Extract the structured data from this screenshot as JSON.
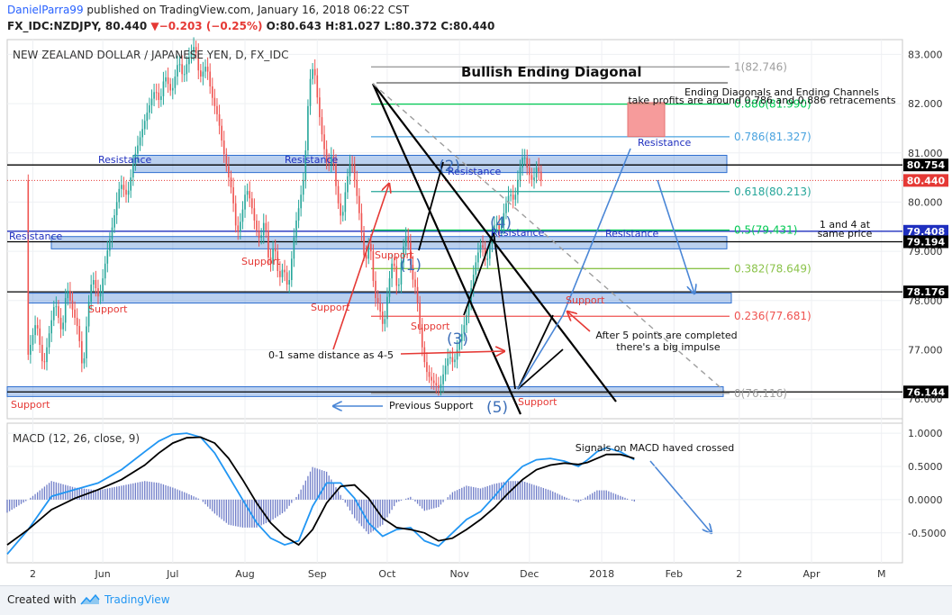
{
  "header": {
    "author": "DanielParra99",
    "published_text": " published on TradingView.com, January 16, 2018 06:22 CST",
    "symbol": "FX_IDC:NZDJPY,",
    "last": "80.440",
    "change": "▼−0.203 (−0.25%)",
    "ohlc": "O:80.643 H:81.027 L:80.372 C:80.440"
  },
  "footer": {
    "created_with": "Created with",
    "brand": "TradingView",
    "logo_icon": "tradingview-logo-icon"
  },
  "colors": {
    "bull": "#26a69a",
    "bear": "#ef5350",
    "zone": "#5b8fd9",
    "arrow_blue": "#4a86d6",
    "resistance_text": "#1f2fbf",
    "support_text": "#e53935",
    "fib_grey": "#9e9e9e",
    "fib_green": "#00c853",
    "fib_blue": "#4aa3df",
    "fib_teal": "#26a69a",
    "fib_lime": "#8bc34a",
    "fib_red": "#ef5350",
    "macd": "#2196f3",
    "signal": "#000000"
  },
  "chart_data": [
    {
      "type": "candlestick",
      "instrument": "NEW ZEALAND DOLLAR / JAPANESE YEN, D, FX_IDC",
      "title": "Bullish Ending Diagonal",
      "ylim": [
        75.6,
        83.3
      ],
      "y_ticks": [
        "83.000",
        "82.000",
        "81.000",
        "80.000",
        "79.000",
        "78.000",
        "77.000",
        "76.000"
      ],
      "x_ticks": [
        {
          "label": "2",
          "day": 2
        },
        {
          "label": "Jun",
          "day": 32
        },
        {
          "label": "Jul",
          "day": 62
        },
        {
          "label": "Aug",
          "day": 93
        },
        {
          "label": "Sep",
          "day": 124
        },
        {
          "label": "Oct",
          "day": 154
        },
        {
          "label": "Nov",
          "day": 185
        },
        {
          "label": "Dec",
          "day": 215
        },
        {
          "label": "2018",
          "day": 246
        },
        {
          "label": "Feb",
          "day": 277
        },
        {
          "label": "2",
          "day": 305
        },
        {
          "label": "Apr",
          "day": 336
        },
        {
          "label": "M",
          "day": 366
        }
      ],
      "x_range_days": [
        -9,
        375
      ],
      "price_path": [
        [
          0,
          76.8
        ],
        [
          4,
          77.6
        ],
        [
          7,
          76.6
        ],
        [
          9,
          77.2
        ],
        [
          12,
          78.0
        ],
        [
          15,
          77.3
        ],
        [
          17,
          78.3
        ],
        [
          19,
          77.9
        ],
        [
          22,
          77.4
        ],
        [
          24,
          76.5
        ],
        [
          26,
          77.8
        ],
        [
          28,
          78.5
        ],
        [
          31,
          78.0
        ],
        [
          34,
          78.9
        ],
        [
          37,
          79.6
        ],
        [
          40,
          80.4
        ],
        [
          43,
          80.1
        ],
        [
          46,
          80.9
        ],
        [
          49,
          81.4
        ],
        [
          52,
          81.9
        ],
        [
          55,
          82.3
        ],
        [
          57,
          82.0
        ],
        [
          59,
          82.6
        ],
        [
          62,
          82.2
        ],
        [
          65,
          82.9
        ],
        [
          67,
          82.5
        ],
        [
          69,
          82.9
        ],
        [
          72,
          83.2
        ],
        [
          74,
          82.5
        ],
        [
          77,
          82.8
        ],
        [
          79,
          82.2
        ],
        [
          82,
          81.7
        ],
        [
          84,
          81.1
        ],
        [
          86,
          80.6
        ],
        [
          88,
          80.2
        ],
        [
          90,
          79.3
        ],
        [
          92,
          79.7
        ],
        [
          94,
          80.3
        ],
        [
          96,
          80.0
        ],
        [
          98,
          79.5
        ],
        [
          100,
          79.2
        ],
        [
          102,
          79.7
        ],
        [
          104,
          78.6
        ],
        [
          106,
          79.2
        ],
        [
          108,
          78.4
        ],
        [
          110,
          78.7
        ],
        [
          112,
          78.2
        ],
        [
          115,
          79.5
        ],
        [
          117,
          80.0
        ],
        [
          119,
          80.6
        ],
        [
          121,
          82.4
        ],
        [
          123,
          82.8
        ],
        [
          125,
          81.9
        ],
        [
          127,
          81.2
        ],
        [
          129,
          80.7
        ],
        [
          131,
          81.0
        ],
        [
          133,
          80.1
        ],
        [
          135,
          79.6
        ],
        [
          137,
          80.4
        ],
        [
          139,
          80.9
        ],
        [
          141,
          80.3
        ],
        [
          143,
          79.6
        ],
        [
          145,
          78.7
        ],
        [
          147,
          79.3
        ],
        [
          149,
          78.1
        ],
        [
          151,
          77.9
        ],
        [
          153,
          77.4
        ],
        [
          155,
          78.3
        ],
        [
          157,
          78.9
        ],
        [
          159,
          78.1
        ],
        [
          161,
          79.0
        ],
        [
          163,
          79.4
        ],
        [
          165,
          78.5
        ],
        [
          167,
          78.2
        ],
        [
          169,
          77.2
        ],
        [
          171,
          76.6
        ],
        [
          173,
          76.4
        ],
        [
          175,
          76.3
        ],
        [
          177,
          76.2
        ],
        [
          179,
          76.6
        ],
        [
          181,
          76.9
        ],
        [
          183,
          76.7
        ],
        [
          185,
          77.1
        ],
        [
          187,
          77.4
        ],
        [
          189,
          77.8
        ],
        [
          191,
          78.4
        ],
        [
          193,
          78.9
        ],
        [
          195,
          79.2
        ],
        [
          197,
          78.7
        ],
        [
          199,
          79.3
        ],
        [
          201,
          79.6
        ],
        [
          203,
          79.4
        ],
        [
          205,
          79.9
        ],
        [
          207,
          80.2
        ],
        [
          209,
          80.0
        ],
        [
          211,
          80.6
        ],
        [
          213,
          81.0
        ],
        [
          215,
          80.6
        ],
        [
          217,
          80.4
        ],
        [
          219,
          80.8
        ],
        [
          220,
          80.44
        ]
      ],
      "horizontal_levels": [
        {
          "price": 80.754,
          "label": "80.754",
          "box": "black"
        },
        {
          "price": 80.44,
          "label": "80.440",
          "box": "red",
          "style": "dotted"
        },
        {
          "price": 79.408,
          "label": "79.408",
          "box": "blue"
        },
        {
          "price": 79.194,
          "label": "79.194",
          "box": "black"
        },
        {
          "price": 78.176,
          "label": "78.176",
          "box": "black"
        },
        {
          "price": 76.144,
          "label": "76.144",
          "box": "black"
        }
      ],
      "fibonacci": [
        {
          "label": "1(82.746)",
          "price": 82.746,
          "color": "#9e9e9e"
        },
        {
          "label": "0.886(81.990)",
          "price": 81.99,
          "color": "#00c853"
        },
        {
          "label": "0.786(81.327)",
          "price": 81.327,
          "color": "#4aa3df"
        },
        {
          "label": "0.618(80.213)",
          "price": 80.213,
          "color": "#26a69a"
        },
        {
          "label": "0.5(79.431)",
          "price": 79.431,
          "color": "#00c853"
        },
        {
          "label": "0.382(78.649)",
          "price": 78.649,
          "color": "#8bc34a"
        },
        {
          "label": "0.236(77.681)",
          "price": 77.681,
          "color": "#ef5350"
        },
        {
          "label": "0(76.116)",
          "price": 76.116,
          "color": "#9e9e9e"
        }
      ],
      "zones": [
        {
          "price_top": 80.95,
          "price_bottom": 80.6
        },
        {
          "price_top": 79.3,
          "price_bottom": 79.05
        },
        {
          "price_top": 78.15,
          "price_bottom": 77.95
        },
        {
          "price_top": 76.25,
          "price_bottom": 76.05
        }
      ],
      "wave_labels": [
        "(1)",
        "(2)",
        "(3)",
        "(4)",
        "(5)"
      ],
      "annotations": {
        "ending_note_1": "Ending Diagonals and Ending Channels",
        "ending_note_2": "take profits are around 0.786 and 0.886 retracements",
        "same_price_1": "1 and 4 at",
        "same_price_2": "same price",
        "distance_note": "0-1 same distance as 4-5",
        "impulse_1": "After 5 points are completed",
        "impulse_2": "there's a big impulse",
        "previous_support": "Previous Support",
        "resistance": "Resistance",
        "support": "Support"
      }
    },
    {
      "type": "line",
      "title": "MACD (12, 26, close, 9)",
      "ylim": [
        -0.95,
        1.15
      ],
      "y_ticks": [
        "1.0000",
        "0.5000",
        "0.0000",
        "-0.5000"
      ],
      "series": [
        {
          "name": "MACD",
          "points": [
            [
              -9,
              -0.82
            ],
            [
              0,
              -0.45
            ],
            [
              10,
              0.05
            ],
            [
              20,
              0.15
            ],
            [
              30,
              0.25
            ],
            [
              40,
              0.45
            ],
            [
              50,
              0.72
            ],
            [
              56,
              0.88
            ],
            [
              62,
              0.98
            ],
            [
              68,
              1.0
            ],
            [
              74,
              0.94
            ],
            [
              80,
              0.7
            ],
            [
              86,
              0.35
            ],
            [
              92,
              0.0
            ],
            [
              98,
              -0.35
            ],
            [
              104,
              -0.58
            ],
            [
              110,
              -0.68
            ],
            [
              116,
              -0.62
            ],
            [
              122,
              -0.1
            ],
            [
              128,
              0.25
            ],
            [
              134,
              0.25
            ],
            [
              140,
              0.02
            ],
            [
              146,
              -0.35
            ],
            [
              152,
              -0.55
            ],
            [
              158,
              -0.45
            ],
            [
              164,
              -0.42
            ],
            [
              170,
              -0.62
            ],
            [
              176,
              -0.7
            ],
            [
              182,
              -0.5
            ],
            [
              188,
              -0.3
            ],
            [
              194,
              -0.18
            ],
            [
              200,
              0.05
            ],
            [
              206,
              0.3
            ],
            [
              212,
              0.5
            ],
            [
              218,
              0.6
            ],
            [
              224,
              0.62
            ],
            [
              230,
              0.58
            ],
            [
              236,
              0.5
            ],
            [
              240,
              0.6
            ],
            [
              244,
              0.72
            ],
            [
              248,
              0.78
            ],
            [
              254,
              0.72
            ],
            [
              260,
              0.6
            ]
          ]
        },
        {
          "name": "Signal",
          "points": [
            [
              -9,
              -0.68
            ],
            [
              0,
              -0.45
            ],
            [
              10,
              -0.15
            ],
            [
              20,
              0.02
            ],
            [
              30,
              0.15
            ],
            [
              40,
              0.3
            ],
            [
              50,
              0.52
            ],
            [
              56,
              0.7
            ],
            [
              62,
              0.85
            ],
            [
              68,
              0.93
            ],
            [
              74,
              0.94
            ],
            [
              80,
              0.85
            ],
            [
              86,
              0.62
            ],
            [
              92,
              0.3
            ],
            [
              98,
              -0.05
            ],
            [
              104,
              -0.35
            ],
            [
              110,
              -0.55
            ],
            [
              116,
              -0.68
            ],
            [
              122,
              -0.45
            ],
            [
              128,
              -0.05
            ],
            [
              134,
              0.2
            ],
            [
              140,
              0.22
            ],
            [
              146,
              0.02
            ],
            [
              152,
              -0.28
            ],
            [
              158,
              -0.42
            ],
            [
              164,
              -0.45
            ],
            [
              170,
              -0.5
            ],
            [
              176,
              -0.62
            ],
            [
              182,
              -0.58
            ],
            [
              188,
              -0.45
            ],
            [
              194,
              -0.3
            ],
            [
              200,
              -0.12
            ],
            [
              206,
              0.1
            ],
            [
              212,
              0.3
            ],
            [
              218,
              0.45
            ],
            [
              224,
              0.52
            ],
            [
              230,
              0.55
            ],
            [
              236,
              0.53
            ],
            [
              240,
              0.56
            ],
            [
              244,
              0.62
            ],
            [
              248,
              0.68
            ],
            [
              254,
              0.68
            ],
            [
              260,
              0.62
            ]
          ]
        }
      ],
      "annotation": "Signals on MACD haved crossed"
    }
  ]
}
